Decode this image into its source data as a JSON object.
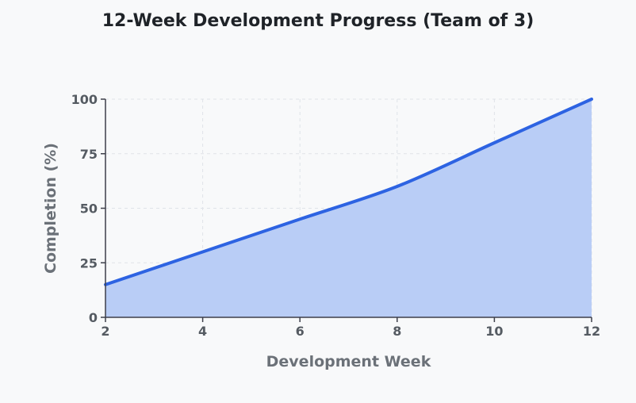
{
  "chart_data": {
    "type": "area",
    "title": "12-Week Development Progress (Team of 3)",
    "xlabel": "Development Week",
    "ylabel": "Completion (%)",
    "x": [
      2,
      4,
      6,
      8,
      10,
      12
    ],
    "series": [
      {
        "values": [
          15,
          30,
          45,
          60,
          80,
          100
        ]
      }
    ],
    "xlim": [
      2,
      12
    ],
    "ylim": [
      0,
      100
    ],
    "xticks": [
      "2",
      "4",
      "6",
      "8",
      "10",
      "12"
    ],
    "yticks": [
      "0",
      "25",
      "50",
      "75",
      "100"
    ],
    "grid": true,
    "colors": {
      "line": "#2d63e2",
      "fill": "#b9cdf6",
      "axis": "#3d3f4a",
      "grid": "#dfe3e8"
    }
  }
}
